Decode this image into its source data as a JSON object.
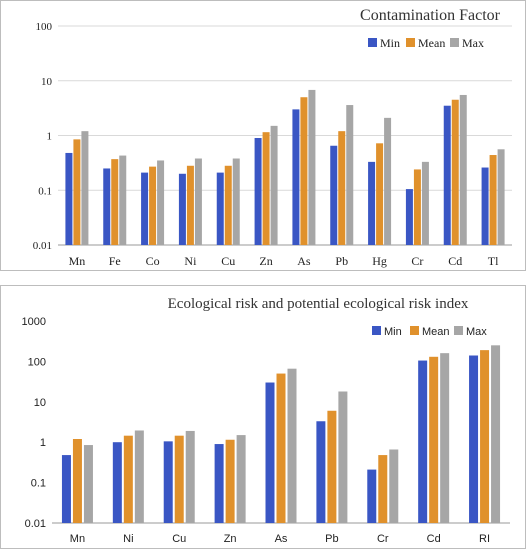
{
  "colors": {
    "Min": "#3a56c4",
    "Mean": "#e0912c",
    "Max": "#a6a6a6",
    "grid": "#d9d9d9",
    "frame": "#bdbdbd"
  },
  "chart_data": [
    {
      "type": "bar",
      "title": "Contamination Factor",
      "yscale": "log",
      "ylim": [
        0.01,
        100
      ],
      "yticks": [
        "0.01",
        "0.1",
        "1",
        "10",
        "100"
      ],
      "legend_position": "top-right",
      "grid": true,
      "categories": [
        "Mn",
        "Fe",
        "Co",
        "Ni",
        "Cu",
        "Zn",
        "As",
        "Pb",
        "Hg",
        "Cr",
        "Cd",
        "Tl"
      ],
      "series": [
        {
          "name": "Min",
          "values": [
            0.48,
            0.25,
            0.21,
            0.2,
            0.21,
            0.9,
            3.0,
            0.65,
            0.33,
            0.105,
            3.5,
            0.26
          ]
        },
        {
          "name": "Mean",
          "values": [
            0.85,
            0.37,
            0.27,
            0.28,
            0.28,
            1.15,
            5.0,
            1.2,
            0.72,
            0.24,
            4.5,
            0.44
          ]
        },
        {
          "name": "Max",
          "values": [
            1.2,
            0.43,
            0.35,
            0.38,
            0.38,
            1.5,
            6.8,
            3.6,
            2.1,
            0.33,
            5.5,
            0.56
          ]
        }
      ]
    },
    {
      "type": "bar",
      "title": "Ecological risk and potential ecological risk index",
      "yscale": "log",
      "ylim": [
        0.01,
        1000
      ],
      "yticks": [
        "0.01",
        "0.1",
        "1",
        "10",
        "100",
        "1000"
      ],
      "legend_position": "top-right",
      "grid": false,
      "categories": [
        "Mn",
        "Ni",
        "Cu",
        "Zn",
        "As",
        "Pb",
        "Cr",
        "Cd",
        "RI"
      ],
      "series": [
        {
          "name": "Min",
          "values": [
            0.48,
            1.0,
            1.05,
            0.9,
            30,
            3.3,
            0.21,
            105,
            140
          ]
        },
        {
          "name": "Mean",
          "values": [
            1.2,
            1.45,
            1.45,
            1.15,
            50,
            6.0,
            0.48,
            130,
            190
          ]
        },
        {
          "name": "Max",
          "values": [
            0.85,
            1.95,
            1.9,
            1.5,
            66,
            18,
            0.66,
            160,
            250
          ]
        }
      ]
    }
  ]
}
